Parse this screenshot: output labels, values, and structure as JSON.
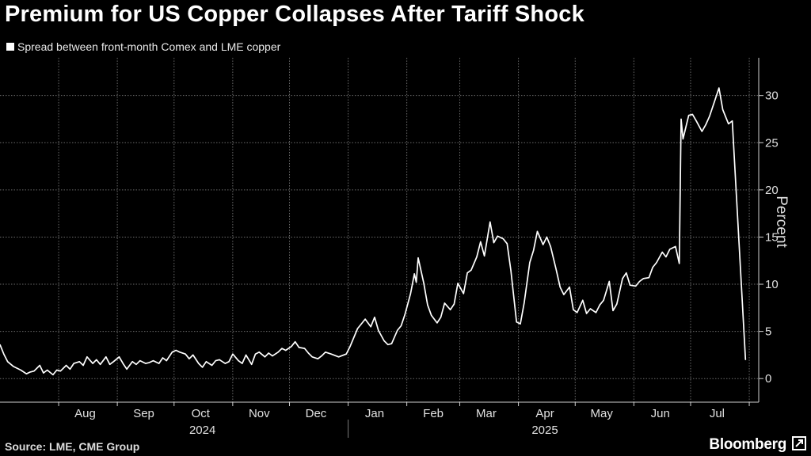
{
  "title": "Premium for US Copper Collapses After Tariff Shock",
  "legend": "Spread between front-month Comex and LME copper",
  "footer": {
    "source": "Source: LME, CME Group",
    "brand": "Bloomberg"
  },
  "colors": {
    "background": "#000000",
    "line": "#ffffff",
    "grid": "#6a6a6a",
    "text": "#e0e0e0"
  },
  "chart_data": {
    "type": "line",
    "title": "Premium for US Copper Collapses After Tariff Shock",
    "ylabel": "Percent",
    "xlabel": "",
    "ylim": [
      -2.5,
      34
    ],
    "yticks": [
      0,
      5,
      10,
      15,
      20,
      25,
      30
    ],
    "xlim": [
      "2024-07-01",
      "2025-08-06"
    ],
    "grid": true,
    "legend_position": "top-left",
    "x_month_labels": [
      {
        "label": "Aug",
        "date": "2024-08-15"
      },
      {
        "label": "Sep",
        "date": "2024-09-15"
      },
      {
        "label": "Oct",
        "date": "2024-10-15"
      },
      {
        "label": "Nov",
        "date": "2024-11-15"
      },
      {
        "label": "Dec",
        "date": "2024-12-15"
      },
      {
        "label": "Jan",
        "date": "2025-01-15"
      },
      {
        "label": "Feb",
        "date": "2025-02-15"
      },
      {
        "label": "Mar",
        "date": "2025-03-15"
      },
      {
        "label": "Apr",
        "date": "2025-04-15"
      },
      {
        "label": "May",
        "date": "2025-05-15"
      },
      {
        "label": "Jun",
        "date": "2025-06-15"
      },
      {
        "label": "Jul",
        "date": "2025-07-15"
      }
    ],
    "x_year_labels": [
      {
        "label": "2024",
        "date": "2024-10-16"
      },
      {
        "label": "2025",
        "date": "2025-04-15"
      }
    ],
    "x_gridlines": [
      "2024-08-01",
      "2024-09-01",
      "2024-10-01",
      "2024-11-01",
      "2024-12-01",
      "2025-01-01",
      "2025-02-01",
      "2025-03-01",
      "2025-04-01",
      "2025-05-01",
      "2025-06-01",
      "2025-07-01",
      "2025-08-01"
    ],
    "series": [
      {
        "name": "Spread between front-month Comex and LME copper",
        "points": [
          [
            "2024-07-01",
            3.6
          ],
          [
            "2024-07-03",
            2.6
          ],
          [
            "2024-07-05",
            1.8
          ],
          [
            "2024-07-08",
            1.3
          ],
          [
            "2024-07-10",
            1.1
          ],
          [
            "2024-07-12",
            0.9
          ],
          [
            "2024-07-15",
            0.5
          ],
          [
            "2024-07-17",
            0.7
          ],
          [
            "2024-07-19",
            0.8
          ],
          [
            "2024-07-22",
            1.4
          ],
          [
            "2024-07-24",
            0.6
          ],
          [
            "2024-07-26",
            0.9
          ],
          [
            "2024-07-29",
            0.4
          ],
          [
            "2024-07-31",
            0.9
          ],
          [
            "2024-08-02",
            0.8
          ],
          [
            "2024-08-05",
            1.4
          ],
          [
            "2024-08-07",
            1.0
          ],
          [
            "2024-08-09",
            1.6
          ],
          [
            "2024-08-12",
            1.8
          ],
          [
            "2024-08-14",
            1.4
          ],
          [
            "2024-08-16",
            2.3
          ],
          [
            "2024-08-19",
            1.6
          ],
          [
            "2024-08-21",
            2.0
          ],
          [
            "2024-08-23",
            1.5
          ],
          [
            "2024-08-26",
            2.3
          ],
          [
            "2024-08-28",
            1.5
          ],
          [
            "2024-08-30",
            1.8
          ],
          [
            "2024-09-02",
            2.3
          ],
          [
            "2024-09-04",
            1.6
          ],
          [
            "2024-09-06",
            1.0
          ],
          [
            "2024-09-09",
            1.8
          ],
          [
            "2024-09-11",
            1.5
          ],
          [
            "2024-09-13",
            1.9
          ],
          [
            "2024-09-16",
            1.6
          ],
          [
            "2024-09-18",
            1.7
          ],
          [
            "2024-09-20",
            1.9
          ],
          [
            "2024-09-23",
            1.6
          ],
          [
            "2024-09-25",
            2.2
          ],
          [
            "2024-09-27",
            1.9
          ],
          [
            "2024-09-30",
            2.8
          ],
          [
            "2024-10-02",
            3.0
          ],
          [
            "2024-10-04",
            2.8
          ],
          [
            "2024-10-07",
            2.6
          ],
          [
            "2024-10-09",
            2.1
          ],
          [
            "2024-10-11",
            2.5
          ],
          [
            "2024-10-14",
            1.6
          ],
          [
            "2024-10-16",
            1.2
          ],
          [
            "2024-10-18",
            1.8
          ],
          [
            "2024-10-21",
            1.4
          ],
          [
            "2024-10-23",
            1.9
          ],
          [
            "2024-10-25",
            2.0
          ],
          [
            "2024-10-28",
            1.6
          ],
          [
            "2024-10-30",
            1.8
          ],
          [
            "2024-11-01",
            2.6
          ],
          [
            "2024-11-04",
            1.9
          ],
          [
            "2024-11-06",
            1.6
          ],
          [
            "2024-11-08",
            2.5
          ],
          [
            "2024-11-11",
            1.5
          ],
          [
            "2024-11-13",
            2.6
          ],
          [
            "2024-11-15",
            2.8
          ],
          [
            "2024-11-18",
            2.3
          ],
          [
            "2024-11-20",
            2.7
          ],
          [
            "2024-11-22",
            2.4
          ],
          [
            "2024-11-25",
            2.8
          ],
          [
            "2024-11-27",
            3.2
          ],
          [
            "2024-11-29",
            3.0
          ],
          [
            "2024-12-02",
            3.4
          ],
          [
            "2024-12-04",
            3.9
          ],
          [
            "2024-12-06",
            3.3
          ],
          [
            "2024-12-09",
            3.2
          ],
          [
            "2024-12-11",
            2.7
          ],
          [
            "2024-12-13",
            2.3
          ],
          [
            "2024-12-16",
            2.1
          ],
          [
            "2024-12-18",
            2.4
          ],
          [
            "2024-12-20",
            2.8
          ],
          [
            "2024-12-23",
            2.6
          ],
          [
            "2024-12-27",
            2.3
          ],
          [
            "2024-12-31",
            2.6
          ],
          [
            "2025-01-02",
            3.4
          ],
          [
            "2025-01-06",
            5.3
          ],
          [
            "2025-01-08",
            5.8
          ],
          [
            "2025-01-10",
            6.3
          ],
          [
            "2025-01-13",
            5.5
          ],
          [
            "2025-01-15",
            6.5
          ],
          [
            "2025-01-17",
            5.1
          ],
          [
            "2025-01-20",
            4.0
          ],
          [
            "2025-01-22",
            3.6
          ],
          [
            "2025-01-24",
            3.7
          ],
          [
            "2025-01-27",
            5.1
          ],
          [
            "2025-01-29",
            5.6
          ],
          [
            "2025-01-31",
            6.8
          ],
          [
            "2025-02-03",
            9.0
          ],
          [
            "2025-02-05",
            11.1
          ],
          [
            "2025-02-06",
            10.2
          ],
          [
            "2025-02-07",
            12.8
          ],
          [
            "2025-02-10",
            10.1
          ],
          [
            "2025-02-12",
            7.8
          ],
          [
            "2025-02-14",
            6.7
          ],
          [
            "2025-02-17",
            5.9
          ],
          [
            "2025-02-19",
            6.5
          ],
          [
            "2025-02-21",
            8.0
          ],
          [
            "2025-02-24",
            7.3
          ],
          [
            "2025-02-26",
            7.9
          ],
          [
            "2025-02-28",
            10.1
          ],
          [
            "2025-03-03",
            9.0
          ],
          [
            "2025-03-05",
            11.2
          ],
          [
            "2025-03-07",
            11.5
          ],
          [
            "2025-03-10",
            12.9
          ],
          [
            "2025-03-12",
            14.5
          ],
          [
            "2025-03-14",
            13.0
          ],
          [
            "2025-03-17",
            16.6
          ],
          [
            "2025-03-19",
            14.4
          ],
          [
            "2025-03-21",
            15.1
          ],
          [
            "2025-03-24",
            14.8
          ],
          [
            "2025-03-26",
            14.3
          ],
          [
            "2025-03-28",
            11.5
          ],
          [
            "2025-03-31",
            6.0
          ],
          [
            "2025-04-02",
            5.8
          ],
          [
            "2025-04-04",
            8.0
          ],
          [
            "2025-04-07",
            12.3
          ],
          [
            "2025-04-09",
            13.6
          ],
          [
            "2025-04-11",
            15.6
          ],
          [
            "2025-04-14",
            14.2
          ],
          [
            "2025-04-16",
            15.0
          ],
          [
            "2025-04-18",
            14.0
          ],
          [
            "2025-04-21",
            11.5
          ],
          [
            "2025-04-23",
            9.7
          ],
          [
            "2025-04-25",
            8.9
          ],
          [
            "2025-04-28",
            9.7
          ],
          [
            "2025-04-30",
            7.3
          ],
          [
            "2025-05-02",
            7.0
          ],
          [
            "2025-05-05",
            8.3
          ],
          [
            "2025-05-07",
            6.9
          ],
          [
            "2025-05-09",
            7.4
          ],
          [
            "2025-05-12",
            7.0
          ],
          [
            "2025-05-14",
            7.8
          ],
          [
            "2025-05-16",
            8.3
          ],
          [
            "2025-05-19",
            10.3
          ],
          [
            "2025-05-21",
            7.2
          ],
          [
            "2025-05-23",
            7.9
          ],
          [
            "2025-05-26",
            10.6
          ],
          [
            "2025-05-28",
            11.2
          ],
          [
            "2025-05-30",
            9.9
          ],
          [
            "2025-06-02",
            9.8
          ],
          [
            "2025-06-04",
            10.3
          ],
          [
            "2025-06-06",
            10.6
          ],
          [
            "2025-06-09",
            10.7
          ],
          [
            "2025-06-11",
            11.8
          ],
          [
            "2025-06-13",
            12.3
          ],
          [
            "2025-06-16",
            13.4
          ],
          [
            "2025-06-18",
            12.9
          ],
          [
            "2025-06-20",
            13.7
          ],
          [
            "2025-06-23",
            14.0
          ],
          [
            "2025-06-25",
            12.2
          ],
          [
            "2025-06-26",
            27.5
          ],
          [
            "2025-06-27",
            25.4
          ],
          [
            "2025-06-30",
            27.9
          ],
          [
            "2025-07-02",
            28.0
          ],
          [
            "2025-07-04",
            27.3
          ],
          [
            "2025-07-07",
            26.2
          ],
          [
            "2025-07-09",
            26.9
          ],
          [
            "2025-07-11",
            27.8
          ],
          [
            "2025-07-14",
            29.6
          ],
          [
            "2025-07-16",
            30.8
          ],
          [
            "2025-07-18",
            28.5
          ],
          [
            "2025-07-21",
            27.0
          ],
          [
            "2025-07-23",
            27.3
          ],
          [
            "2025-07-30",
            2.0
          ]
        ]
      }
    ]
  }
}
